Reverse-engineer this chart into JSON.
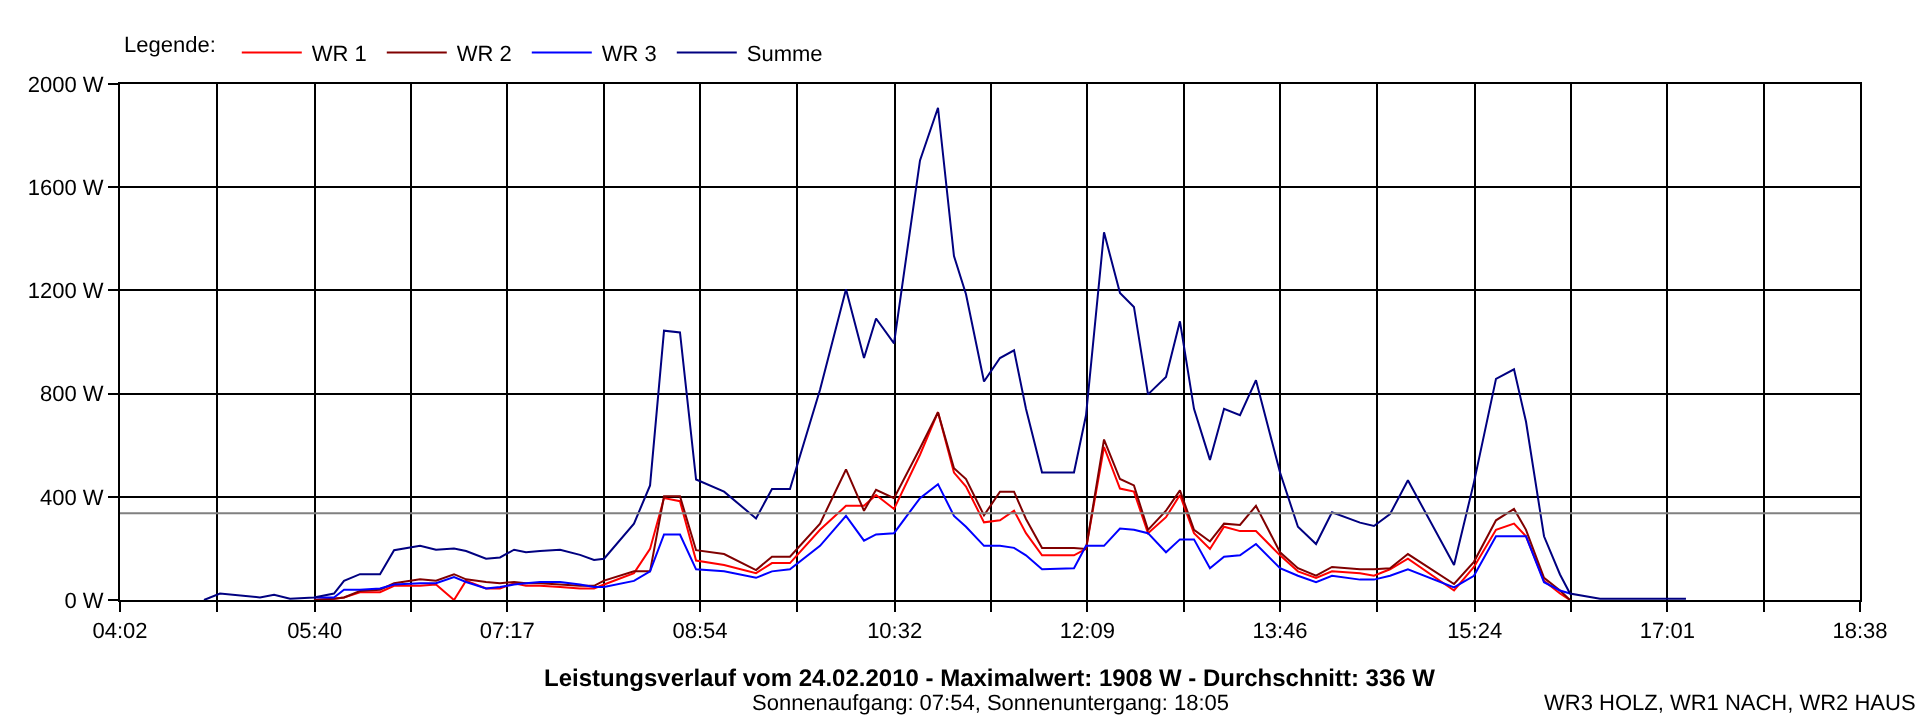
{
  "chart_data": {
    "type": "line",
    "title": "Leistungsverlauf vom 24.02.2010 - Maximalwert: 1908 W - Durchschnitt: 336 W",
    "subtitle": "Sonnenaufgang: 07:54, Sonnenuntergang: 18:05",
    "legend_title": "Legende:",
    "legend": "top left",
    "grid": true,
    "marker": "none",
    "line_style": "solid",
    "xlim": [
      4.0333,
      18.6333
    ],
    "xticks": [
      {
        "value": 4.0333,
        "label": "04:02"
      },
      {
        "value": 4.85,
        "label": null
      },
      {
        "value": 5.6667,
        "label": "05:40"
      },
      {
        "value": 6.475,
        "label": null
      },
      {
        "value": 7.2833,
        "label": "07:17"
      },
      {
        "value": 8.0917,
        "label": null
      },
      {
        "value": 8.9,
        "label": "08:54"
      },
      {
        "value": 9.7167,
        "label": null
      },
      {
        "value": 10.5333,
        "label": "10:32"
      },
      {
        "value": 11.3417,
        "label": null
      },
      {
        "value": 12.15,
        "label": "12:09"
      },
      {
        "value": 12.9583,
        "label": null
      },
      {
        "value": 13.7667,
        "label": "13:46"
      },
      {
        "value": 14.5833,
        "label": null
      },
      {
        "value": 15.4,
        "label": "15:24"
      },
      {
        "value": 16.2083,
        "label": null
      },
      {
        "value": 17.0167,
        "label": "17:01"
      },
      {
        "value": 17.825,
        "label": null
      },
      {
        "value": 18.6333,
        "label": "18:38"
      }
    ],
    "ylim": [
      0,
      2000
    ],
    "yticks": [
      {
        "value": 0,
        "label": "0 W"
      },
      {
        "value": 400,
        "label": "400 W"
      },
      {
        "value": 800,
        "label": "800 W"
      },
      {
        "value": 1200,
        "label": "1200 W"
      },
      {
        "value": 1600,
        "label": "1600 W"
      },
      {
        "value": 2000,
        "label": "2000 W"
      }
    ],
    "ref_lines": [
      {
        "axis": "y",
        "value": 336,
        "color": "#808080"
      }
    ],
    "annotations": [
      "WR3 HOLZ, WR1 NACH, WR2 HAUS"
    ],
    "x": [
      5.661,
      5.829,
      5.913,
      6.047,
      6.215,
      6.333,
      6.551,
      6.685,
      6.836,
      6.937,
      7.105,
      7.222,
      7.34,
      7.44,
      7.558,
      7.726,
      7.893,
      8.011,
      8.095,
      8.346,
      8.481,
      8.598,
      8.732,
      8.867,
      9.102,
      9.37,
      9.504,
      9.655,
      9.907,
      10.125,
      10.276,
      10.377,
      10.528,
      10.746,
      10.897,
      11.031,
      11.132,
      11.283,
      11.417,
      11.535,
      11.635,
      11.77,
      12.038,
      12.139,
      12.29,
      12.424,
      12.541,
      12.659,
      12.81,
      12.927,
      13.045,
      13.179,
      13.297,
      13.431,
      13.565,
      13.767,
      13.917,
      14.069,
      14.203,
      14.438,
      14.555,
      14.69,
      14.84,
      15.227,
      15.394,
      15.579,
      15.73,
      15.831,
      15.982,
      16.116,
      16.2
    ],
    "series": [
      {
        "name": "WR 1",
        "color": "#ff0000",
        "values": [
          0,
          5,
          10,
          30,
          30,
          55,
          55,
          60,
          0,
          75,
          45,
          45,
          65,
          55,
          55,
          50,
          45,
          45,
          60,
          104,
          198,
          395,
          383,
          153,
          136,
          104,
          143,
          143,
          272,
          365,
          365,
          407,
          353,
          563,
          728,
          494,
          440,
          301,
          309,
          346,
          259,
          173,
          173,
          198,
          593,
          432,
          420,
          259,
          321,
          407,
          259,
          198,
          284,
          267,
          267,
          173,
          111,
          86,
          111,
          104,
          94,
          119,
          160,
          37,
          128,
          272,
          296,
          247,
          74,
          25,
          0
        ]
      },
      {
        "name": "WR 2",
        "color": "#800000",
        "values": [
          0,
          5,
          10,
          35,
          40,
          65,
          80,
          75,
          100,
          80,
          70,
          65,
          70,
          65,
          65,
          60,
          55,
          55,
          75,
          111,
          111,
          402,
          402,
          193,
          178,
          116,
          168,
          168,
          296,
          506,
          346,
          427,
          395,
          588,
          728,
          511,
          469,
          328,
          420,
          420,
          314,
          202,
          202,
          198,
          622,
          469,
          444,
          272,
          346,
          425,
          272,
          227,
          296,
          291,
          365,
          185,
          123,
          94,
          128,
          119,
          119,
          123,
          178,
          62,
          148,
          309,
          353,
          272,
          86,
          37,
          0
        ]
      },
      {
        "name": "WR 3",
        "color": "#0000ff",
        "values": [
          10,
          10,
          40,
          40,
          45,
          60,
          65,
          65,
          89,
          70,
          45,
          50,
          60,
          65,
          70,
          70,
          60,
          50,
          50,
          74,
          111,
          254,
          254,
          119,
          111,
          86,
          111,
          119,
          210,
          326,
          230,
          254,
          259,
          395,
          449,
          326,
          284,
          210,
          210,
          202,
          173,
          119,
          123,
          210,
          210,
          277,
          272,
          259,
          185,
          235,
          235,
          123,
          168,
          173,
          217,
          123,
          94,
          69,
          94,
          79,
          79,
          94,
          119,
          49,
          94,
          247,
          247,
          247,
          69,
          37,
          25
        ]
      },
      {
        "name": "Summe",
        "color": "#000080",
        "x": [
          4.738,
          4.872,
          5.208,
          5.326,
          5.46,
          5.661,
          5.829,
          5.913,
          6.047,
          6.215,
          6.333,
          6.551,
          6.685,
          6.836,
          6.937,
          7.105,
          7.222,
          7.34,
          7.44,
          7.558,
          7.726,
          7.893,
          8.011,
          8.095,
          8.346,
          8.481,
          8.598,
          8.732,
          8.867,
          9.102,
          9.37,
          9.504,
          9.655,
          9.907,
          10.125,
          10.276,
          10.377,
          10.528,
          10.746,
          10.897,
          11.031,
          11.132,
          11.283,
          11.417,
          11.535,
          11.635,
          11.77,
          12.038,
          12.139,
          12.29,
          12.424,
          12.541,
          12.659,
          12.81,
          12.927,
          13.045,
          13.179,
          13.297,
          13.431,
          13.565,
          13.767,
          13.917,
          14.069,
          14.203,
          14.438,
          14.555,
          14.69,
          14.84,
          15.227,
          15.394,
          15.579,
          15.73,
          15.831,
          15.982,
          16.116,
          16.2,
          16.452,
          17.173
        ],
        "values": [
          0,
          25,
          10,
          20,
          5,
          10,
          25,
          74,
          100,
          100,
          193,
          210,
          195,
          200,
          190,
          160,
          165,
          195,
          185,
          190,
          195,
          175,
          155,
          160,
          296,
          444,
          1044,
          1037,
          467,
          420,
          316,
          430,
          430,
          815,
          1204,
          938,
          1091,
          995,
          1704,
          1908,
          1333,
          1185,
          847,
          938,
          968,
          741,
          494,
          494,
          716,
          1425,
          1190,
          1136,
          797,
          864,
          1080,
          741,
          543,
          741,
          716,
          852,
          494,
          284,
          217,
          340,
          300,
          287,
          333,
          464,
          136,
          456,
          857,
          894,
          691,
          247,
          99,
          25,
          5,
          5
        ]
      }
    ]
  }
}
